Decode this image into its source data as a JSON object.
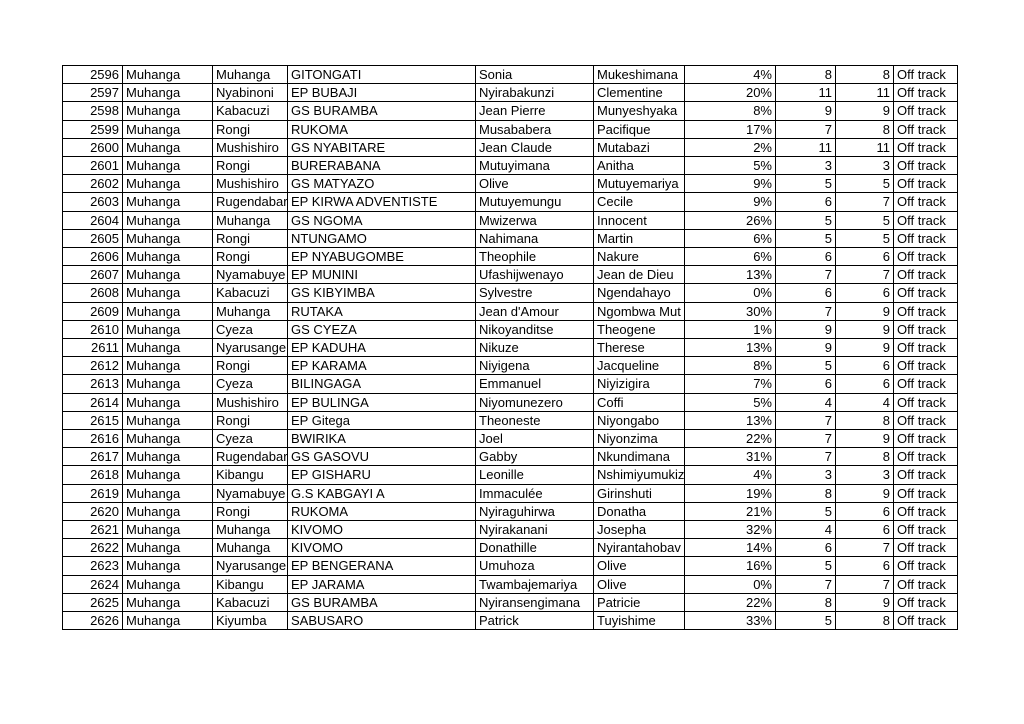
{
  "page": {
    "background_color": "#ffffff",
    "border_color": "#000000",
    "text_color": "#000000"
  },
  "table": {
    "columns": [
      {
        "key": "row-id"
      },
      {
        "key": "district"
      },
      {
        "key": "sector"
      },
      {
        "key": "school"
      },
      {
        "key": "first-name"
      },
      {
        "key": "last-name"
      },
      {
        "key": "percent"
      },
      {
        "key": "value-1"
      },
      {
        "key": "value-2"
      },
      {
        "key": "status"
      }
    ],
    "rows": [
      [
        "2596",
        "Muhanga",
        "Muhanga",
        "GITONGATI",
        "Sonia",
        "Mukeshimana",
        "4%",
        "8",
        "8",
        "Off track"
      ],
      [
        "2597",
        "Muhanga",
        "Nyabinoni",
        "EP BUBAJI",
        "Nyirabakunzi",
        "Clementine",
        "20%",
        "11",
        "11",
        "Off track"
      ],
      [
        "2598",
        "Muhanga",
        "Kabacuzi",
        "GS BURAMBA",
        "Jean Pierre",
        "Munyeshyaka",
        "8%",
        "9",
        "9",
        "Off track"
      ],
      [
        "2599",
        "Muhanga",
        "Rongi",
        "RUKOMA",
        "Musababera",
        "Pacifique",
        "17%",
        "7",
        "8",
        "Off track"
      ],
      [
        "2600",
        "Muhanga",
        "Mushishiro",
        "GS NYABITARE",
        "Jean Claude",
        "Mutabazi",
        "2%",
        "11",
        "11",
        "Off track"
      ],
      [
        "2601",
        "Muhanga",
        "Rongi",
        "BURERABANA",
        "Mutuyimana",
        "Anitha",
        "5%",
        "3",
        "3",
        "Off track"
      ],
      [
        "2602",
        "Muhanga",
        "Mushishiro",
        "GS MATYAZO",
        "Olive",
        "Mutuyemariya",
        "9%",
        "5",
        "5",
        "Off track"
      ],
      [
        "2603",
        "Muhanga",
        "Rugendabar",
        "EP KIRWA ADVENTISTE",
        "Mutuyemungu",
        "Cecile",
        "9%",
        "6",
        "7",
        "Off track"
      ],
      [
        "2604",
        "Muhanga",
        "Muhanga",
        "GS NGOMA",
        "Mwizerwa",
        "Innocent",
        "26%",
        "5",
        "5",
        "Off track"
      ],
      [
        "2605",
        "Muhanga",
        "Rongi",
        "NTUNGAMO",
        "Nahimana",
        "Martin",
        "6%",
        "5",
        "5",
        "Off track"
      ],
      [
        "2606",
        "Muhanga",
        "Rongi",
        "EP NYABUGOMBE",
        "Theophile",
        "Nakure",
        "6%",
        "6",
        "6",
        "Off track"
      ],
      [
        "2607",
        "Muhanga",
        "Nyamabuye",
        "EP MUNINI",
        "Ufashijwenayo",
        "Jean de Dieu",
        "13%",
        "7",
        "7",
        "Off track"
      ],
      [
        "2608",
        "Muhanga",
        "Kabacuzi",
        "GS KIBYIMBA",
        "Sylvestre",
        "Ngendahayo",
        "0%",
        "6",
        "6",
        "Off track"
      ],
      [
        "2609",
        "Muhanga",
        "Muhanga",
        "RUTAKA",
        "Jean d'Amour",
        "Ngombwa Mut",
        "30%",
        "7",
        "9",
        "Off track"
      ],
      [
        "2610",
        "Muhanga",
        "Cyeza",
        "GS CYEZA",
        "Nikoyanditse",
        "Theogene",
        "1%",
        "9",
        "9",
        "Off track"
      ],
      [
        "2611",
        "Muhanga",
        "Nyarusange",
        "EP KADUHA",
        "Nikuze",
        "Therese",
        "13%",
        "9",
        "9",
        "Off track"
      ],
      [
        "2612",
        "Muhanga",
        "Rongi",
        "EP KARAMA",
        "Niyigena",
        "Jacqueline",
        "8%",
        "5",
        "6",
        "Off track"
      ],
      [
        "2613",
        "Muhanga",
        "Cyeza",
        "BILINGAGA",
        "Emmanuel",
        "Niyizigira",
        "7%",
        "6",
        "6",
        "Off track"
      ],
      [
        "2614",
        "Muhanga",
        "Mushishiro",
        "EP BULINGA",
        "Niyomunezero",
        "Coffi",
        "5%",
        "4",
        "4",
        "Off track"
      ],
      [
        "2615",
        "Muhanga",
        "Rongi",
        "EP Gitega",
        "Theoneste",
        "Niyongabo",
        "13%",
        "7",
        "8",
        "Off track"
      ],
      [
        "2616",
        "Muhanga",
        "Cyeza",
        "BWIRIKA",
        "Joel",
        "Niyonzima",
        "22%",
        "7",
        "9",
        "Off track"
      ],
      [
        "2617",
        "Muhanga",
        "Rugendabar",
        "GS GASOVU",
        "Gabby",
        "Nkundimana",
        "31%",
        "7",
        "8",
        "Off track"
      ],
      [
        "2618",
        "Muhanga",
        "Kibangu",
        "EP GISHARU",
        "Leonille",
        "Nshimiyumukiz",
        "4%",
        "3",
        "3",
        "Off track"
      ],
      [
        "2619",
        "Muhanga",
        "Nyamabuye",
        "G.S KABGAYI A",
        "Immaculée",
        "Girinshuti",
        "19%",
        "8",
        "9",
        "Off track"
      ],
      [
        "2620",
        "Muhanga",
        "Rongi",
        "RUKOMA",
        "Nyiraguhirwa",
        "Donatha",
        "21%",
        "5",
        "6",
        "Off track"
      ],
      [
        "2621",
        "Muhanga",
        "Muhanga",
        "KIVOMO",
        "Nyirakanani",
        "Josepha",
        "32%",
        "4",
        "6",
        "Off track"
      ],
      [
        "2622",
        "Muhanga",
        "Muhanga",
        "KIVOMO",
        "Donathille",
        "Nyirantahobav",
        "14%",
        "6",
        "7",
        "Off track"
      ],
      [
        "2623",
        "Muhanga",
        "Nyarusange",
        "EP BENGERANA",
        "Umuhoza",
        "Olive",
        "16%",
        "5",
        "6",
        "Off track"
      ],
      [
        "2624",
        "Muhanga",
        "Kibangu",
        "EP JARAMA",
        "Twambajemariya",
        "Olive",
        "0%",
        "7",
        "7",
        "Off track"
      ],
      [
        "2625",
        "Muhanga",
        "Kabacuzi",
        "GS BURAMBA",
        "Nyiransengimana",
        "Patricie",
        "22%",
        "8",
        "9",
        "Off track"
      ],
      [
        "2626",
        "Muhanga",
        "Kiyumba",
        "SABUSARO",
        "Patrick",
        "Tuyishime",
        "33%",
        "5",
        "8",
        "Off track"
      ]
    ]
  }
}
